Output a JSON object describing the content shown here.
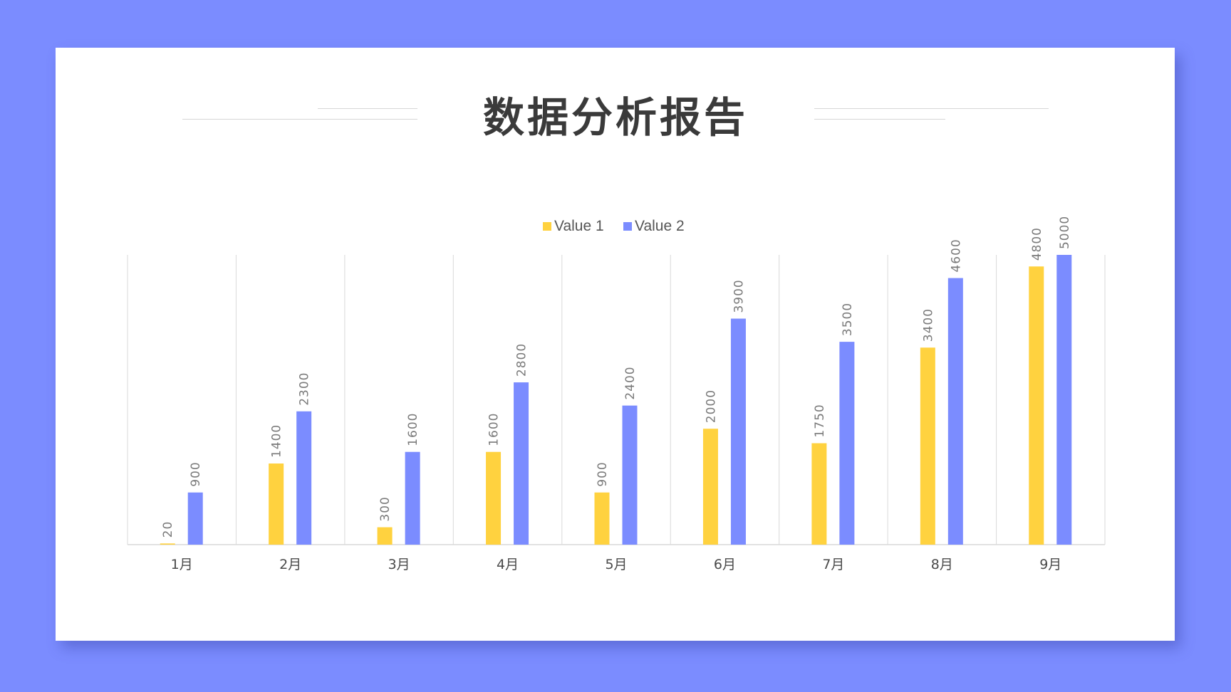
{
  "slide": {
    "title": "数据分析报告"
  },
  "colors": {
    "background": "#7b8cff",
    "series1": "#ffd23f",
    "series2": "#7b8cff",
    "grid": "#d9d9d9",
    "label": "#7a7a7a",
    "title": "#3a3a3a"
  },
  "chart_data": {
    "type": "bar",
    "categories": [
      "1月",
      "2月",
      "3月",
      "4月",
      "5月",
      "6月",
      "7月",
      "8月",
      "9月"
    ],
    "series": [
      {
        "name": "Value 1",
        "values": [
          20,
          1400,
          300,
          1600,
          900,
          2000,
          1750,
          3400,
          4800
        ]
      },
      {
        "name": "Value 2",
        "values": [
          900,
          2300,
          1600,
          2800,
          2400,
          3900,
          3500,
          4600,
          5000
        ]
      }
    ],
    "ylim": [
      0,
      5000
    ],
    "legend": "top-center",
    "grid": "vertical category separators",
    "data_labels": true
  }
}
